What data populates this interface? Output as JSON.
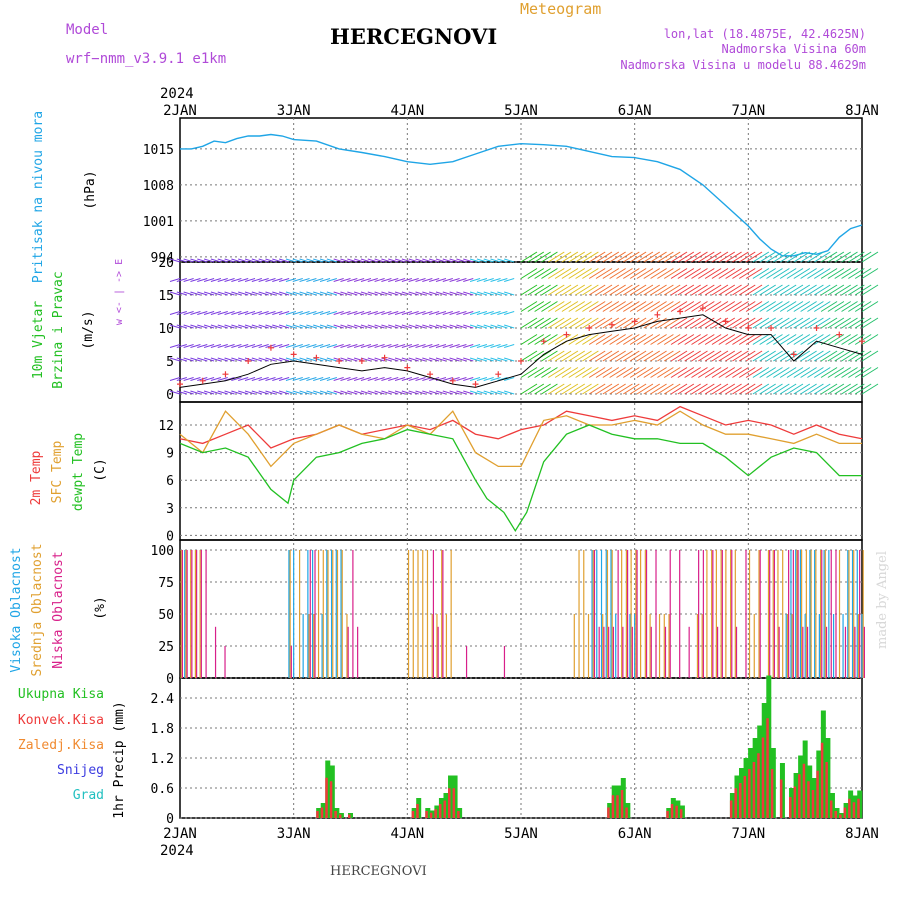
{
  "header": {
    "model_label": "Model",
    "model_name": "wrf−nmm_v3.9.1  e1km",
    "station": "HERCEGNOVI",
    "product": "Meteogram",
    "lonlat": "lon,lat (18.4875E, 42.4625N)",
    "elevation": "Nadmorska Visina 60m",
    "model_elevation": "Nadmorska Visina u modelu 88.4629m",
    "year": "2024",
    "footer_station": "HERCEGNOVI",
    "credit": "made by Angel"
  },
  "colors": {
    "pressure": "#1fa5e6",
    "wind_label": "#22c022",
    "wind_axis_label": "#b04ad8",
    "wind_speed": "#000000",
    "gust": "#ee3b3b",
    "temp2m": "#ee3b3b",
    "sfc": "#e0a030",
    "dewpt": "#22c022",
    "cloud_high": "#1fa5e6",
    "cloud_mid": "#e0a030",
    "cloud_low": "#d8208a",
    "precip_total": "#22c022",
    "precip_conv": "#ee3b3b",
    "precip_frozen": "#f08a30",
    "snow": "#3b3be0",
    "graupel": "#22c0c0"
  },
  "chart_data": [
    {
      "type": "line",
      "panel": "pressure",
      "ylabel": "Pritisak na nivou mora",
      "unit": "(hPa)",
      "x_ticks": [
        "2JAN",
        "3JAN",
        "4JAN",
        "5JAN",
        "6JAN",
        "7JAN",
        "8JAN"
      ],
      "y_ticks": [
        994,
        1001,
        1008,
        1015
      ],
      "ylim": [
        993,
        1021
      ],
      "x": [
        0,
        0.1,
        0.2,
        0.3,
        0.4,
        0.5,
        0.6,
        0.7,
        0.8,
        0.9,
        1.0,
        1.2,
        1.4,
        1.6,
        1.8,
        2.0,
        2.2,
        2.4,
        2.6,
        2.8,
        3.0,
        3.2,
        3.4,
        3.6,
        3.8,
        4.0,
        4.2,
        4.4,
        4.6,
        4.8,
        5.0,
        5.1,
        5.2,
        5.3,
        5.4,
        5.5,
        5.6,
        5.7,
        5.8,
        5.9,
        6.0
      ],
      "values": [
        1015,
        1015,
        1015.5,
        1016.5,
        1016.2,
        1017,
        1017.5,
        1017.5,
        1017.8,
        1017.5,
        1016.8,
        1016.5,
        1015,
        1014.3,
        1013.5,
        1012.5,
        1012,
        1012.5,
        1014,
        1015.5,
        1016,
        1015.8,
        1015.5,
        1014.5,
        1013.5,
        1013.3,
        1012.5,
        1011,
        1008,
        1004,
        1000,
        997.5,
        995.5,
        994.2,
        994.2,
        994.8,
        994.5,
        995.2,
        997.8,
        999.5,
        1000.2
      ]
    },
    {
      "type": "line",
      "panel": "wind",
      "ylabel": "10m Vjetar Brzina i Pravac",
      "unit": "(m/s)",
      "direction_legend": "w <- | -> E",
      "y_ticks": [
        0,
        5,
        10,
        15,
        20
      ],
      "ylim": [
        -1,
        20
      ],
      "series": [
        {
          "name": "speed",
          "x": [
            0,
            0.2,
            0.4,
            0.6,
            0.8,
            1.0,
            1.2,
            1.4,
            1.6,
            1.8,
            2.0,
            2.2,
            2.4,
            2.6,
            2.8,
            3.0,
            3.2,
            3.4,
            3.6,
            3.8,
            4.0,
            4.2,
            4.4,
            4.6,
            4.8,
            5.0,
            5.2,
            5.4,
            5.6,
            5.8,
            6.0
          ],
          "values": [
            1,
            1.5,
            2,
            3,
            4.5,
            5,
            4.5,
            4,
            3.5,
            4,
            3.5,
            2.5,
            1.5,
            1,
            2,
            3,
            6,
            8,
            9,
            9.5,
            10,
            11,
            11.5,
            12,
            10,
            9,
            9,
            5,
            8,
            7,
            6
          ]
        },
        {
          "name": "gust",
          "x": [
            0,
            0.2,
            0.4,
            0.6,
            0.8,
            1.0,
            1.2,
            1.4,
            1.6,
            1.8,
            2.0,
            2.2,
            2.4,
            2.6,
            2.8,
            3.0,
            3.2,
            3.4,
            3.6,
            3.8,
            4.0,
            4.2,
            4.4,
            4.6,
            4.8,
            5.0,
            5.2,
            5.4,
            5.6,
            5.8,
            6.0
          ],
          "values": [
            1.5,
            2,
            3,
            5,
            7,
            6,
            5.5,
            5,
            5,
            5.5,
            4,
            3,
            2,
            1.5,
            3,
            5,
            8,
            9,
            10,
            10.5,
            11,
            12,
            12.5,
            13,
            11,
            10,
            10,
            6,
            10,
            9,
            8
          ]
        }
      ]
    },
    {
      "type": "line",
      "panel": "temperature",
      "unit": "(C)",
      "y_ticks": [
        0,
        3,
        6,
        9,
        12
      ],
      "ylim": [
        -0.5,
        14.5
      ],
      "series": [
        {
          "name": "2m Temp",
          "x": [
            0,
            0.2,
            0.4,
            0.6,
            0.8,
            1.0,
            1.2,
            1.4,
            1.6,
            1.8,
            2.0,
            2.2,
            2.4,
            2.6,
            2.8,
            3.0,
            3.2,
            3.4,
            3.6,
            3.8,
            4.0,
            4.2,
            4.4,
            4.6,
            4.8,
            5.0,
            5.2,
            5.4,
            5.6,
            5.8,
            6.0
          ],
          "values": [
            10.5,
            10,
            11,
            12,
            9.5,
            10.5,
            11,
            12,
            11,
            11.5,
            12,
            11.5,
            12.5,
            11,
            10.5,
            11.5,
            12,
            13.5,
            13,
            12.5,
            13,
            12.5,
            14,
            13,
            12,
            12.5,
            12,
            11,
            12,
            11,
            10.5
          ]
        },
        {
          "name": "SFC Temp",
          "x": [
            0,
            0.2,
            0.4,
            0.6,
            0.8,
            1.0,
            1.2,
            1.4,
            1.6,
            1.8,
            2.0,
            2.2,
            2.4,
            2.6,
            2.8,
            3.0,
            3.2,
            3.4,
            3.6,
            3.8,
            4.0,
            4.2,
            4.4,
            4.6,
            4.8,
            5.0,
            5.2,
            5.4,
            5.6,
            5.8,
            6.0
          ],
          "values": [
            11,
            9,
            13.5,
            11,
            7.5,
            10,
            11,
            12,
            11,
            10.5,
            12,
            11,
            13.5,
            9,
            7.5,
            7.5,
            12.5,
            13,
            12,
            12,
            12.5,
            12,
            13.5,
            12,
            11,
            11,
            10.5,
            10,
            11,
            10,
            10
          ]
        },
        {
          "name": "dewpt Temp",
          "x": [
            0,
            0.2,
            0.4,
            0.6,
            0.8,
            0.95,
            1.0,
            1.2,
            1.4,
            1.6,
            1.8,
            2.0,
            2.2,
            2.4,
            2.6,
            2.7,
            2.85,
            2.95,
            3.05,
            3.2,
            3.4,
            3.6,
            3.8,
            4.0,
            4.2,
            4.4,
            4.6,
            4.8,
            5.0,
            5.2,
            5.4,
            5.6,
            5.8,
            6.0
          ],
          "values": [
            10,
            9,
            9.5,
            8.5,
            5,
            3.5,
            6,
            8.5,
            9,
            10,
            10.5,
            11.5,
            11,
            10.5,
            6,
            4,
            2.5,
            0.5,
            2.5,
            8,
            11,
            12,
            11,
            10.5,
            10.5,
            10,
            10,
            8.5,
            6.5,
            8.5,
            9.5,
            9,
            6.5,
            6.5
          ]
        }
      ]
    },
    {
      "type": "bar",
      "panel": "clouds",
      "unit": "(%)",
      "y_ticks": [
        0,
        25,
        50,
        75,
        100
      ],
      "ylim": [
        0,
        100
      ],
      "series_names": [
        "Visoka Oblacnost",
        "Srednja Oblacnost",
        "Niska Oblacnost"
      ],
      "note": "hourly cloud fraction bars, 3 layers"
    },
    {
      "type": "bar",
      "panel": "precipitation",
      "ylabel": "1hr Precip",
      "unit": "(mm)",
      "y_ticks": [
        0,
        0.6,
        1.2,
        1.8,
        2.4
      ],
      "ylim": [
        0,
        2.8
      ],
      "legend": [
        "Ukupna Kisa",
        "Konvek.Kisa",
        "Zaledj.Kisa",
        "Snijeg",
        "Grad"
      ],
      "x": [
        1.22,
        1.26,
        1.3,
        1.34,
        1.38,
        1.42,
        1.5,
        2.06,
        2.1,
        2.18,
        2.22,
        2.26,
        2.3,
        2.34,
        2.38,
        2.42,
        2.46,
        3.78,
        3.82,
        3.86,
        3.9,
        3.94,
        4.3,
        4.34,
        4.38,
        4.42,
        4.86,
        4.9,
        4.94,
        4.98,
        5.02,
        5.06,
        5.1,
        5.14,
        5.18,
        5.22,
        5.3,
        5.38,
        5.42,
        5.46,
        5.5,
        5.54,
        5.58,
        5.62,
        5.66,
        5.7,
        5.74,
        5.78,
        5.82,
        5.86,
        5.9,
        5.94,
        5.98
      ],
      "values": [
        0.2,
        0.3,
        1.15,
        1.05,
        0.2,
        0.1,
        0.1,
        0.2,
        0.4,
        0.2,
        0.15,
        0.25,
        0.4,
        0.5,
        0.85,
        0.85,
        0.2,
        0.3,
        0.65,
        0.65,
        0.8,
        0.3,
        0.2,
        0.4,
        0.35,
        0.25,
        0.5,
        0.85,
        1.0,
        1.2,
        1.4,
        1.6,
        1.85,
        2.3,
        2.85,
        1.4,
        1.1,
        0.6,
        0.9,
        1.25,
        1.55,
        1.05,
        0.8,
        1.35,
        2.15,
        1.6,
        0.5,
        0.2,
        0.1,
        0.3,
        0.55,
        0.45,
        0.55
      ]
    }
  ]
}
